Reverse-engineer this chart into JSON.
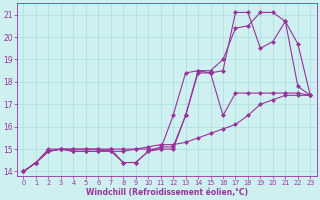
{
  "xlabel": "Windchill (Refroidissement éolien,°C)",
  "ylabel": "",
  "bg_color": "#cff0f0",
  "grid_color": "#aadddd",
  "line_color": "#993399",
  "xlim": [
    -0.5,
    23.5
  ],
  "ylim": [
    13.8,
    21.5
  ],
  "xticks": [
    0,
    1,
    2,
    3,
    4,
    5,
    6,
    7,
    8,
    9,
    10,
    11,
    12,
    13,
    14,
    15,
    16,
    17,
    18,
    19,
    20,
    21,
    22,
    23
  ],
  "yticks": [
    14,
    15,
    16,
    17,
    18,
    19,
    20,
    21
  ],
  "line1_x": [
    0,
    1,
    2,
    3,
    4,
    5,
    6,
    7,
    8,
    9,
    10,
    11,
    12,
    13,
    14,
    15,
    16,
    17,
    18,
    19,
    20,
    21,
    22,
    23
  ],
  "line1_y": [
    14.0,
    14.4,
    14.9,
    15.0,
    14.9,
    14.9,
    14.9,
    14.9,
    14.4,
    14.4,
    14.9,
    15.0,
    15.0,
    16.5,
    18.4,
    18.4,
    16.5,
    17.5,
    17.5,
    17.5,
    17.5,
    17.5,
    17.5,
    17.4
  ],
  "line2_x": [
    0,
    1,
    2,
    3,
    4,
    5,
    6,
    7,
    8,
    9,
    10,
    11,
    12,
    13,
    14,
    15,
    16,
    17,
    18,
    19,
    20,
    21,
    22,
    23
  ],
  "line2_y": [
    14.0,
    14.4,
    14.9,
    15.0,
    14.9,
    14.9,
    14.9,
    15.0,
    15.0,
    15.0,
    15.1,
    15.2,
    15.2,
    15.3,
    15.5,
    15.7,
    15.9,
    16.1,
    16.5,
    17.0,
    17.2,
    17.4,
    17.4,
    17.4
  ],
  "line3_x": [
    0,
    1,
    2,
    3,
    4,
    5,
    6,
    7,
    8,
    9,
    10,
    11,
    12,
    13,
    14,
    15,
    16,
    17,
    18,
    19,
    20,
    21,
    22,
    23
  ],
  "line3_y": [
    14.0,
    14.4,
    15.0,
    15.0,
    15.0,
    15.0,
    15.0,
    15.0,
    14.4,
    14.4,
    14.9,
    15.1,
    15.1,
    16.5,
    18.5,
    18.4,
    18.5,
    21.1,
    21.1,
    19.5,
    19.8,
    20.7,
    19.7,
    17.4
  ],
  "line4_x": [
    0,
    1,
    2,
    3,
    4,
    5,
    6,
    7,
    8,
    9,
    10,
    11,
    12,
    13,
    14,
    15,
    16,
    17,
    18,
    19,
    20,
    21,
    22,
    23
  ],
  "line4_y": [
    14.0,
    14.4,
    14.9,
    15.0,
    15.0,
    15.0,
    15.0,
    14.9,
    14.9,
    15.0,
    15.0,
    15.0,
    16.5,
    18.4,
    18.5,
    18.5,
    19.0,
    20.4,
    20.5,
    21.1,
    21.1,
    20.7,
    17.8,
    17.4
  ]
}
